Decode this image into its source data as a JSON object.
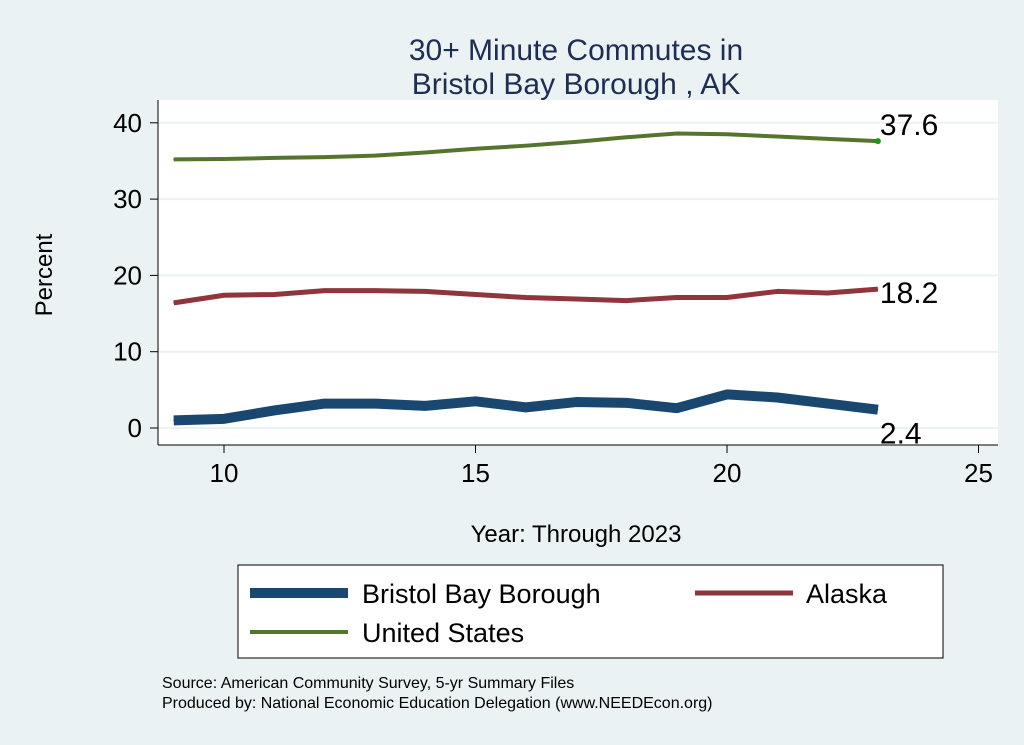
{
  "chart_data": {
    "type": "line",
    "title": [
      "30+ Minute Commutes in",
      "Bristol Bay Borough , AK"
    ],
    "xlabel": "Year: Through 2023",
    "ylabel": "Percent",
    "xlim": [
      8.7,
      25.4
    ],
    "ylim": [
      -2.2,
      42
    ],
    "xticks": [
      10,
      15,
      20,
      25
    ],
    "yticks": [
      0,
      10,
      20,
      30,
      40
    ],
    "grid": true,
    "legend_position": "bottom",
    "x": [
      9,
      10,
      11,
      12,
      13,
      14,
      15,
      16,
      17,
      18,
      19,
      20,
      21,
      22,
      23
    ],
    "series": [
      {
        "name": "Bristol Bay Borough",
        "color": "#1a476f",
        "values": [
          1.0,
          1.2,
          2.3,
          3.2,
          3.2,
          2.9,
          3.5,
          2.7,
          3.4,
          3.3,
          2.6,
          4.4,
          4.0,
          3.2,
          2.4
        ],
        "end_label": "2.4"
      },
      {
        "name": "Alaska",
        "color": "#90353b",
        "values": [
          16.4,
          17.4,
          17.5,
          18.0,
          18.0,
          17.9,
          17.5,
          17.1,
          16.9,
          16.7,
          17.1,
          17.1,
          17.9,
          17.7,
          18.2
        ],
        "end_label": "18.2"
      },
      {
        "name": "United States",
        "color": "#55752f",
        "values": [
          35.2,
          35.25,
          35.4,
          35.5,
          35.7,
          36.1,
          36.6,
          37.0,
          37.5,
          38.1,
          38.6,
          38.5,
          38.2,
          37.9,
          37.6
        ],
        "end_label": "37.6"
      }
    ]
  },
  "notes": {
    "source": "Source: American Community Survey, 5-yr Summary Files",
    "produced": "Produced by: National Economic Education Delegation (www.NEEDEcon.org)"
  }
}
